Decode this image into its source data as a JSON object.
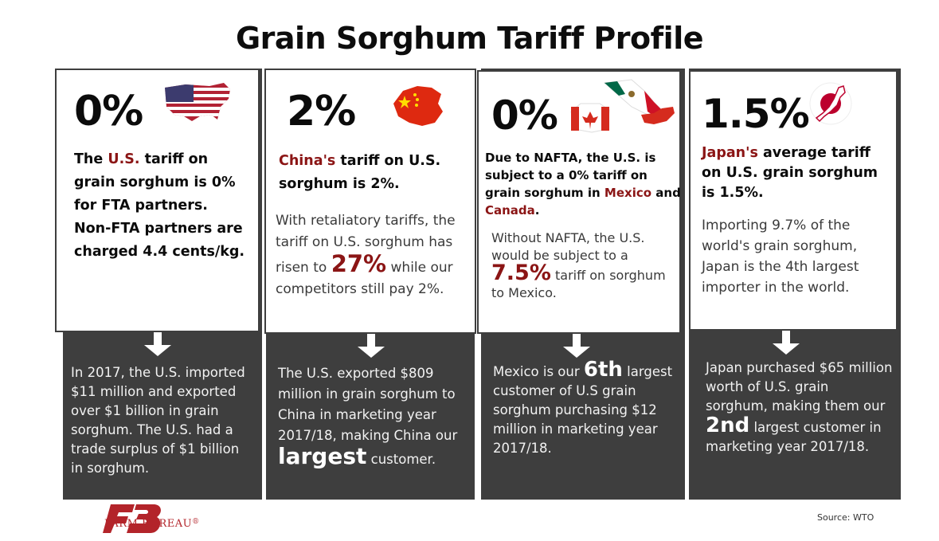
{
  "title": "Grain Sorghum Tariff Profile",
  "colors": {
    "dark_panel": "#3e3e3e",
    "accent_red": "#8b1515",
    "brand_red": "#b3242a"
  },
  "panels": [
    {
      "country": "U.S.",
      "flag_icon": "us-flag-map-icon",
      "tariff": "0%",
      "heading_pre": "The ",
      "heading_red": "U.S.",
      "heading_post": " tariff on grain sorghum is 0% for FTA partners. Non-FTA partners are charged 4.4 cents/kg.",
      "bottom": "In 2017, the U.S. imported $11 million and exported over $1 billion in grain sorghum. The U.S. had a trade surplus of $1 billion in sorghum."
    },
    {
      "country": "China",
      "flag_icon": "china-flag-map-icon",
      "tariff": "2%",
      "heading_red": "China's",
      "heading_post": " tariff on U.S. sorghum is 2%.",
      "body_pre": "With retaliatory tariffs, the tariff on U.S. sorghum has risen to",
      "body_big": "27%",
      "body_post": "while our competitors still pay 2%.",
      "bottom_pre": "The U.S. exported $809 million in grain sorghum to China in marketing year 2017/18, making China our",
      "bottom_big": "largest",
      "bottom_post": "customer."
    },
    {
      "country": "Mexico and Canada",
      "flag_icon": "mexico-canada-flag-map-icon",
      "tariff": "0%",
      "heading_pre": "Due to NAFTA, the U.S. is subject to a 0% tariff on grain sorghum in ",
      "heading_red1": "Mexico",
      "heading_mid": " and ",
      "heading_red2": "Canada",
      "heading_post": ".",
      "body_pre": "Without NAFTA, the U.S. would be subject to a",
      "body_big": "7.5%",
      "body_post": "tariff on sorghum to Mexico.",
      "bottom_pre": "Mexico is our",
      "bottom_big": "6th",
      "bottom_post": "largest customer of U.S grain sorghum purchasing $12 million in marketing year 2017/18."
    },
    {
      "country": "Japan",
      "flag_icon": "japan-flag-map-icon",
      "tariff": "1.5%",
      "heading_red": "Japan's",
      "heading_post": " average tariff on U.S. grain sorghum is 1.5%.",
      "body": "Importing 9.7% of the world's grain sorghum, Japan is the 4th largest importer in the world.",
      "bottom_pre": "Japan purchased $65 million worth of U.S. grain sorghum, making them our",
      "bottom_big": "2nd",
      "bottom_post": "largest customer in marketing year 2017/18."
    }
  ],
  "footer": {
    "logo_mark": "FB",
    "brand": "FARM BUREAU",
    "registered": "®",
    "source": "Source: WTO"
  }
}
